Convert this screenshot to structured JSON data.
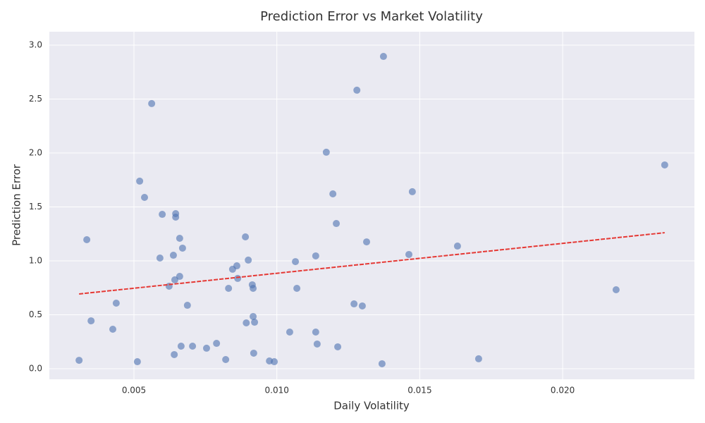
{
  "chart_data": {
    "type": "scatter",
    "title": "Prediction Error vs Market Volatility",
    "x_label": "Daily Volatility",
    "y_label": "Prediction Error",
    "x": [
      0.00308,
      0.00335,
      0.0035,
      0.00426,
      0.00438,
      0.00512,
      0.0052,
      0.00537,
      0.00562,
      0.00591,
      0.00599,
      0.00623,
      0.00638,
      0.00641,
      0.00643,
      0.00646,
      0.00646,
      0.0066,
      0.0066,
      0.00665,
      0.0067,
      0.00687,
      0.00705,
      0.00754,
      0.00789,
      0.00821,
      0.00831,
      0.00845,
      0.0086,
      0.00863,
      0.0089,
      0.00893,
      0.009,
      0.00914,
      0.00917,
      0.00917,
      0.00919,
      0.00922,
      0.00974,
      0.00991,
      0.01045,
      0.01065,
      0.0107,
      0.01136,
      0.01136,
      0.01141,
      0.01173,
      0.01196,
      0.01208,
      0.01213,
      0.0127,
      0.0128,
      0.01299,
      0.01314,
      0.01368,
      0.01373,
      0.01462,
      0.01474,
      0.01632,
      0.01706,
      0.02187,
      0.02357
    ],
    "values": [
      0.078,
      1.196,
      0.444,
      0.366,
      0.608,
      0.065,
      1.739,
      1.588,
      2.458,
      1.026,
      1.431,
      0.765,
      1.052,
      0.131,
      0.824,
      1.438,
      1.405,
      1.209,
      0.856,
      0.209,
      1.118,
      0.588,
      0.209,
      0.19,
      0.235,
      0.085,
      0.745,
      0.922,
      0.954,
      0.837,
      1.222,
      0.425,
      1.007,
      0.778,
      0.745,
      0.484,
      0.144,
      0.431,
      0.072,
      0.065,
      0.34,
      0.993,
      0.745,
      1.046,
      0.34,
      0.229,
      2.007,
      1.621,
      1.346,
      0.203,
      0.601,
      2.582,
      0.582,
      1.176,
      0.046,
      2.895,
      1.059,
      1.641,
      1.137,
      0.092,
      0.732,
      1.889
    ],
    "color": "#4c72b0",
    "trend": {
      "x": [
        0.00308,
        0.02357
      ],
      "values": [
        0.693,
        1.261
      ],
      "color": "#e53935"
    },
    "xlim": [
      0.00204,
      0.02461
    ],
    "xticks": [
      0.005,
      {
        "value": 0.01,
        "label": "0.010"
      },
      0.015,
      {
        "value": 0.02,
        "label": "0.020"
      }
    ],
    "ylim": [
      -0.098,
      3.124
    ],
    "yticks": [
      {
        "value": 0,
        "label": "0.0"
      },
      0.5,
      {
        "value": 1,
        "label": "1.0"
      },
      1.5,
      {
        "value": 2,
        "label": "2.0"
      },
      2.5,
      {
        "value": 3,
        "label": "3.0"
      }
    ],
    "grid": true
  }
}
